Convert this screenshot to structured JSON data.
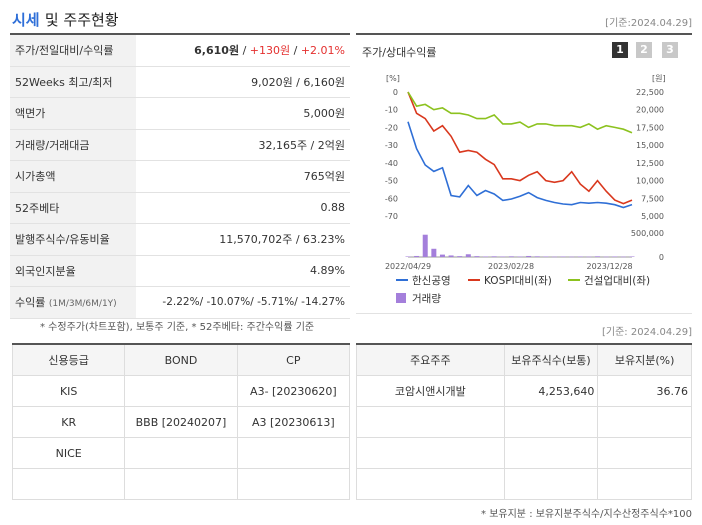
{
  "header": {
    "title_part1": "시세",
    "title_part2": "및 주주현황",
    "date": "[기준:2024.04.29]"
  },
  "quote": {
    "rows": [
      {
        "label": "주가/전일대비/수익률",
        "value_main": "6,610원",
        "sep1": " / ",
        "value_change": "+130원",
        "sep2": " / ",
        "value_rate": "+2.01%"
      },
      {
        "label": "52Weeks 최고/최저",
        "value": "9,020원 / 6,160원"
      },
      {
        "label": "액면가",
        "value": "5,000원"
      },
      {
        "label": "거래량/거래대금",
        "value": "32,165주 / 2억원"
      },
      {
        "label": "시가총액",
        "value": "765억원"
      },
      {
        "label": "52주베타",
        "value": "0.88"
      },
      {
        "label": "발행주식수/유동비율",
        "value": "11,570,702주 / 63.23%"
      },
      {
        "label": "외국인지분율",
        "value": "4.89%"
      }
    ],
    "return_label": "수익률",
    "return_sub": "(1M/3M/6M/1Y)",
    "return_value": "-2.22%/ -10.07%/ -5.71%/ -14.27%",
    "note": "* 수정주가(차트포함), 보통주 기준, * 52주베타: 주간수익률 기준"
  },
  "chart": {
    "title": "주가/상대수익률",
    "buttons": [
      "1",
      "2",
      "3"
    ],
    "left_unit": "[%]",
    "right_unit": "[원]",
    "volume_label_right": "500,000",
    "volume_zero": "0"
  },
  "chart_data": {
    "type": "line",
    "x_ticks": [
      "2022/04/29",
      "2023/02/28",
      "2023/12/28"
    ],
    "y_left_ticks": [
      "0",
      "-10",
      "-20",
      "-30",
      "-40",
      "-50",
      "-60",
      "-70"
    ],
    "y_right_ticks": [
      "22,500",
      "20,000",
      "17,500",
      "15,000",
      "12,500",
      "10,000",
      "7,500",
      "5,000"
    ],
    "ylim_left": [
      -70,
      0
    ],
    "ylim_right": [
      5000,
      22500
    ],
    "series": [
      {
        "name": "한신공영",
        "color": "#2f6fd6",
        "axis": "right",
        "values": [
          18300,
          14500,
          12200,
          11300,
          11800,
          7900,
          7700,
          9300,
          7900,
          8600,
          8100,
          7200,
          7400,
          7800,
          8300,
          7600,
          7200,
          6900,
          6700,
          6600,
          6900,
          6800,
          6900,
          6800,
          6600,
          6200,
          6610
        ]
      },
      {
        "name": "KOSPI대비(좌)",
        "color": "#d9381e",
        "axis": "left",
        "values": [
          0,
          -12,
          -15,
          -22,
          -19,
          -25,
          -34,
          -33,
          -34,
          -38,
          -41,
          -49,
          -49,
          -50,
          -47,
          -45,
          -50,
          -51,
          -50,
          -45,
          -52,
          -56,
          -50,
          -56,
          -61,
          -63,
          -61
        ]
      },
      {
        "name": "건설업대비(좌)",
        "color": "#8cc21f",
        "axis": "left",
        "values": [
          0,
          -8,
          -7,
          -10,
          -9,
          -12,
          -12,
          -13,
          -15,
          -15,
          -13,
          -18,
          -18,
          -17,
          -20,
          -18,
          -18,
          -19,
          -19,
          -19,
          -20,
          -18,
          -21,
          -19,
          -20,
          -21,
          -23
        ]
      },
      {
        "name": "거래량",
        "color": "#a47fdb",
        "axis": "volume",
        "values": [
          15000,
          30000,
          650000,
          240000,
          70000,
          45000,
          25000,
          80000,
          25000,
          15000,
          20000,
          15000,
          20000,
          15000,
          30000,
          20000,
          15000,
          10000,
          15000,
          10000,
          15000,
          10000,
          20000,
          10000,
          15000,
          10000,
          15000
        ]
      }
    ],
    "volume_ylim": [
      0,
      700000
    ]
  },
  "credit": {
    "headers": [
      "신용등급",
      "BOND",
      "CP"
    ],
    "rows": [
      [
        "KIS",
        "",
        "A3-  [20230620]"
      ],
      [
        "KR",
        "BBB  [20240207]",
        "A3  [20230613]"
      ],
      [
        "NICE",
        "",
        ""
      ],
      [
        "",
        "",
        ""
      ]
    ]
  },
  "holders": {
    "date": "[기준: 2024.04.29]",
    "headers": [
      "주요주주",
      "보유주식수(보통)",
      "보유지분(%)"
    ],
    "rows": [
      [
        "코암시앤시개발",
        "4,253,640",
        "36.76"
      ],
      [
        "",
        "",
        ""
      ],
      [
        "",
        "",
        ""
      ],
      [
        "",
        "",
        ""
      ]
    ],
    "note": "* 보유지분 : 보유지분주식수/지수산정주식수*100"
  }
}
